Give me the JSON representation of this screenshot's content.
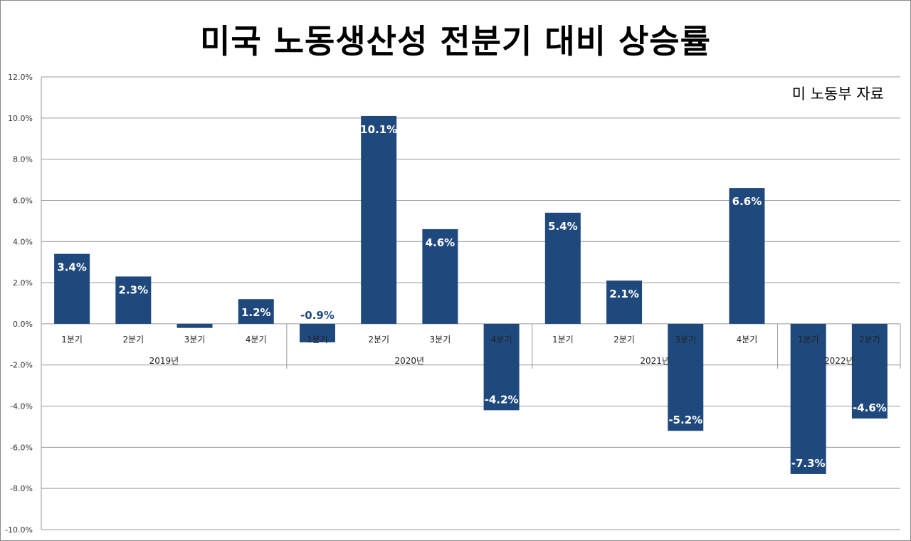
{
  "chart_data": {
    "type": "bar",
    "title": "미국 노동생산성 전분기 대비 상승률",
    "annotation": "미 노동부 자료",
    "categories": [
      "1분기",
      "2분기",
      "3분기",
      "4분기",
      "1분기",
      "2분기",
      "3분기",
      "4분기",
      "1분기",
      "2분기",
      "3분기",
      "4분기",
      "1분기",
      "2분기"
    ],
    "groups": [
      {
        "label": "2019년",
        "count": 4
      },
      {
        "label": "2020년",
        "count": 4
      },
      {
        "label": "2021년",
        "count": 4
      },
      {
        "label": "2022년",
        "count": 2
      }
    ],
    "values": [
      3.4,
      2.3,
      -0.2,
      1.2,
      -0.9,
      10.1,
      4.6,
      -4.2,
      5.4,
      2.1,
      -5.2,
      6.6,
      -7.3,
      -4.6
    ],
    "data_labels": [
      "3.4%",
      "2.3%",
      "",
      "1.2%",
      "-0.9%",
      "10.1%",
      "4.6%",
      "-4.2%",
      "5.4%",
      "2.1%",
      "-5.2%",
      "6.6%",
      "-7.3%",
      "-4.6%"
    ],
    "ylim": [
      -10,
      12
    ],
    "yticks": [
      12,
      10,
      8,
      6,
      4,
      2,
      0,
      -2,
      -4,
      -6,
      -8,
      -10
    ],
    "ytick_labels": [
      "12.0%",
      "10.0%",
      "8.0%",
      "6.0%",
      "4.0%",
      "2.0%",
      "0.0%",
      "-2.0%",
      "-4.0%",
      "-6.0%",
      "-8.0%",
      "-10.0%"
    ],
    "grid": true,
    "legend": "none",
    "bar_color": "#1F497D"
  }
}
